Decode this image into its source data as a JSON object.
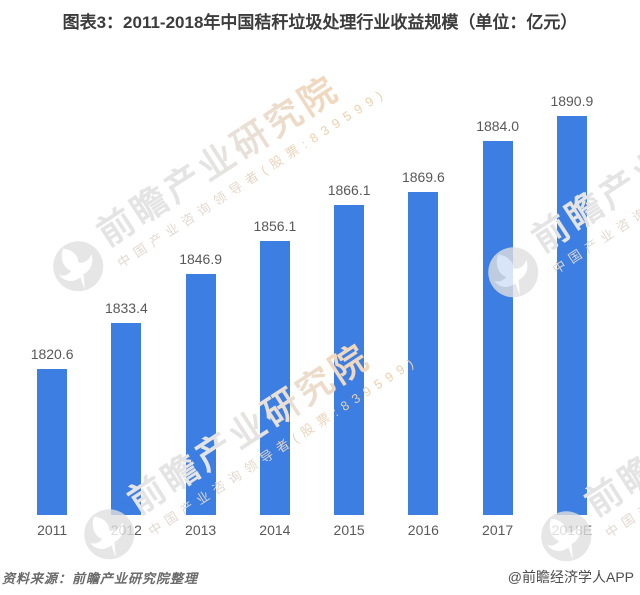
{
  "title": "图表3：2011-2018年中国秸秆垃圾处理行业收益规模（单位：亿元）",
  "source_note": "资料来源：前瞻产业研究院整理",
  "credit": "@前瞻经济学人APP",
  "watermark": {
    "brand": "前瞻产业研究院",
    "tagline": "中国产业咨询领导者(股票:839599)"
  },
  "colors": {
    "bar": "#3d7ee3",
    "title_text": "#3c3c3c",
    "label_text": "#595959",
    "watermark_gray": "#e3e3e3",
    "watermark_orange": "#f1d7bc"
  },
  "chart_data": {
    "type": "bar",
    "title": "图表3：2011-2018年中国秸秆垃圾处理行业收益规模（单位：亿元）",
    "categories": [
      "2011",
      "2012",
      "2013",
      "2014",
      "2015",
      "2016",
      "2017",
      "2018E"
    ],
    "values": [
      1820.6,
      1833.4,
      1846.9,
      1856.1,
      1866.1,
      1869.6,
      1884.0,
      1890.9
    ],
    "value_labels": [
      "1820.6",
      "1833.4",
      "1846.9",
      "1856.1",
      "1866.1",
      "1869.6",
      "1884.0",
      "1890.9"
    ],
    "xlabel": "",
    "ylabel": "亿元",
    "ylim": [
      1780,
      1900
    ],
    "grid": false,
    "legend": false,
    "data_labels": true,
    "bar_color": "#3d7ee3"
  }
}
